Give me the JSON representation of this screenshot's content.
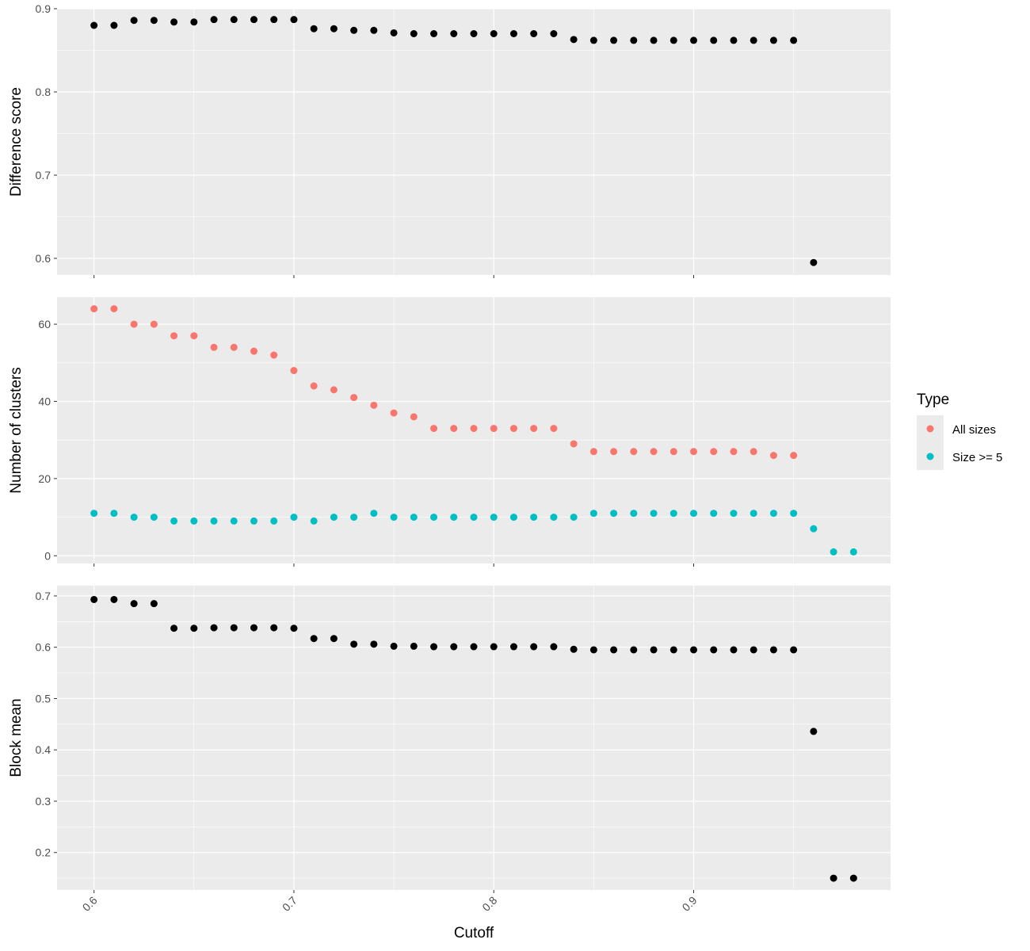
{
  "chart_data": {
    "type": "scatter",
    "xlabel": "Cutoff",
    "x_ticks": [
      "0.6",
      "0.7",
      "0.8",
      "0.9"
    ],
    "xlim": [
      0.5815,
      0.9985
    ],
    "legend": {
      "title": "Type",
      "placement": "right",
      "entries": [
        {
          "name": "All sizes",
          "color": "#F8766D"
        },
        {
          "name": "Size >= 5",
          "color": "#00BFC4"
        }
      ]
    },
    "grid": true,
    "background": "#EBEBEB",
    "panels": [
      {
        "ylabel": "Difference score",
        "ylim": [
          0.58,
          0.9
        ],
        "y_ticks": [
          "0.6",
          "0.7",
          "0.8",
          "0.9"
        ],
        "series": [
          {
            "color": "#000000",
            "x": [
              0.6,
              0.61,
              0.62,
              0.63,
              0.64,
              0.65,
              0.66,
              0.67,
              0.68,
              0.69,
              0.7,
              0.71,
              0.72,
              0.73,
              0.74,
              0.75,
              0.76,
              0.77,
              0.78,
              0.79,
              0.8,
              0.81,
              0.82,
              0.83,
              0.84,
              0.85,
              0.86,
              0.87,
              0.88,
              0.89,
              0.9,
              0.91,
              0.92,
              0.93,
              0.94,
              0.95,
              0.96
            ],
            "y": [
              0.88,
              0.88,
              0.886,
              0.886,
              0.884,
              0.884,
              0.887,
              0.887,
              0.887,
              0.887,
              0.887,
              0.876,
              0.876,
              0.874,
              0.874,
              0.871,
              0.87,
              0.87,
              0.87,
              0.87,
              0.87,
              0.87,
              0.87,
              0.87,
              0.863,
              0.862,
              0.862,
              0.862,
              0.862,
              0.862,
              0.862,
              0.862,
              0.862,
              0.862,
              0.862,
              0.862,
              0.595
            ]
          }
        ]
      },
      {
        "ylabel": "Number of clusters",
        "ylim": [
          -2,
          67
        ],
        "y_ticks": [
          "0",
          "20",
          "40",
          "60"
        ],
        "series": [
          {
            "name": "All sizes",
            "color": "#F8766D",
            "x": [
              0.6,
              0.61,
              0.62,
              0.63,
              0.64,
              0.65,
              0.66,
              0.67,
              0.68,
              0.69,
              0.7,
              0.71,
              0.72,
              0.73,
              0.74,
              0.75,
              0.76,
              0.77,
              0.78,
              0.79,
              0.8,
              0.81,
              0.82,
              0.83,
              0.84,
              0.85,
              0.86,
              0.87,
              0.88,
              0.89,
              0.9,
              0.91,
              0.92,
              0.93,
              0.94,
              0.95
            ],
            "y": [
              64,
              64,
              60,
              60,
              57,
              57,
              54,
              54,
              53,
              52,
              48,
              44,
              43,
              41,
              39,
              37,
              36,
              33,
              33,
              33,
              33,
              33,
              33,
              33,
              29,
              27,
              27,
              27,
              27,
              27,
              27,
              27,
              27,
              27,
              26,
              26
            ]
          },
          {
            "name": "Size >= 5",
            "color": "#00BFC4",
            "x": [
              0.6,
              0.61,
              0.62,
              0.63,
              0.64,
              0.65,
              0.66,
              0.67,
              0.68,
              0.69,
              0.7,
              0.71,
              0.72,
              0.73,
              0.74,
              0.75,
              0.76,
              0.77,
              0.78,
              0.79,
              0.8,
              0.81,
              0.82,
              0.83,
              0.84,
              0.85,
              0.86,
              0.87,
              0.88,
              0.89,
              0.9,
              0.91,
              0.92,
              0.93,
              0.94,
              0.95,
              0.96,
              0.97,
              0.98
            ],
            "y": [
              11,
              11,
              10,
              10,
              9,
              9,
              9,
              9,
              9,
              9,
              10,
              9,
              10,
              10,
              11,
              10,
              10,
              10,
              10,
              10,
              10,
              10,
              10,
              10,
              10,
              11,
              11,
              11,
              11,
              11,
              11,
              11,
              11,
              11,
              11,
              11,
              7,
              1,
              1
            ]
          }
        ]
      },
      {
        "ylabel": "Block mean",
        "ylim": [
          0.127,
          0.72
        ],
        "y_ticks": [
          "0.2",
          "0.3",
          "0.4",
          "0.5",
          "0.6",
          "0.7"
        ],
        "series": [
          {
            "color": "#000000",
            "x": [
              0.6,
              0.61,
              0.62,
              0.63,
              0.64,
              0.65,
              0.66,
              0.67,
              0.68,
              0.69,
              0.7,
              0.71,
              0.72,
              0.73,
              0.74,
              0.75,
              0.76,
              0.77,
              0.78,
              0.79,
              0.8,
              0.81,
              0.82,
              0.83,
              0.84,
              0.85,
              0.86,
              0.87,
              0.88,
              0.89,
              0.9,
              0.91,
              0.92,
              0.93,
              0.94,
              0.95,
              0.96,
              0.97,
              0.98
            ],
            "y": [
              0.693,
              0.693,
              0.685,
              0.685,
              0.637,
              0.637,
              0.638,
              0.638,
              0.638,
              0.638,
              0.637,
              0.617,
              0.617,
              0.606,
              0.606,
              0.602,
              0.602,
              0.601,
              0.601,
              0.601,
              0.601,
              0.601,
              0.601,
              0.601,
              0.596,
              0.595,
              0.595,
              0.595,
              0.595,
              0.595,
              0.595,
              0.595,
              0.595,
              0.595,
              0.595,
              0.595,
              0.436,
              0.15,
              0.15
            ]
          }
        ]
      }
    ]
  }
}
